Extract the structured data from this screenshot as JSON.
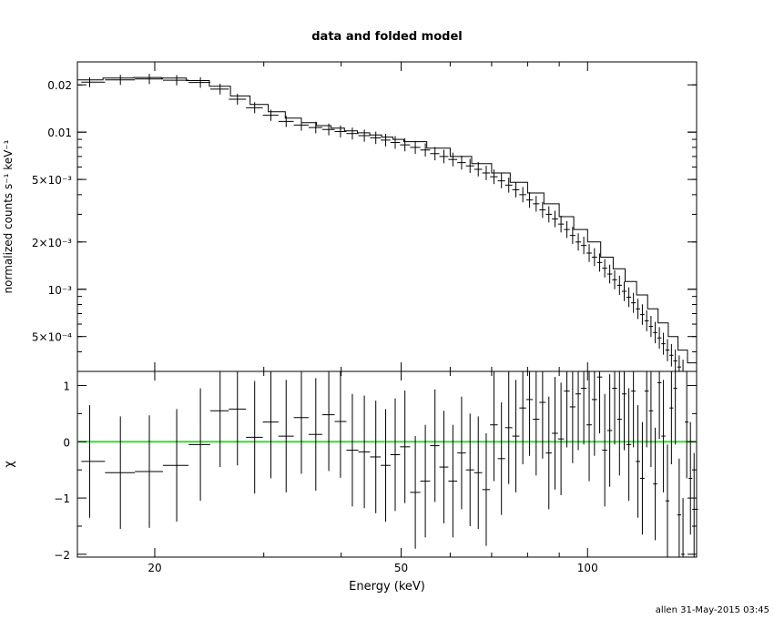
{
  "title": "data and folded model",
  "footer": "allen 31-May-2015 03:45",
  "colors": {
    "axes": "#000000",
    "zero_line": "#33dd33",
    "background": "#ffffff"
  },
  "chart_data": [
    {
      "type": "line",
      "panel": "top",
      "ylabel": "normalized counts s⁻¹ keV⁻¹",
      "xscale": "log",
      "yscale": "log",
      "xlim": [
        15,
        150
      ],
      "ylim": [
        0.0003,
        0.028
      ],
      "ytick_labels": [
        {
          "v": 0.02,
          "label": "0.02"
        },
        {
          "v": 0.01,
          "label": "0.01"
        },
        {
          "v": 0.005,
          "label": "5×10⁻³"
        },
        {
          "v": 0.002,
          "label": "2×10⁻³"
        },
        {
          "v": 0.001,
          "label": "10⁻³"
        },
        {
          "v": 0.0005,
          "label": "5×10⁻⁴"
        }
      ],
      "series": [
        {
          "kind": "data",
          "x": [
            15.7,
            17.6,
            19.6,
            21.7,
            23.7,
            25.5,
            27.2,
            29.0,
            30.8,
            32.6,
            34.5,
            36.4,
            38.2,
            39.9,
            41.7,
            43.6,
            45.5,
            47.2,
            48.9,
            50.7,
            52.7,
            54.7,
            56.7,
            58.6,
            60.6,
            62.6,
            64.6,
            66.6,
            68.6,
            70.6,
            72.6,
            74.6,
            76.6,
            78.6,
            80.6,
            82.6,
            84.6,
            86.6,
            88.6,
            90.6,
            92.6,
            94.6,
            96.6,
            98.6,
            100.6,
            102.6,
            104.6,
            106.6,
            108.6,
            110.6,
            112.6,
            114.6,
            116.6,
            118.6,
            120.6,
            122.6,
            124.6,
            126.6,
            128.6,
            130.6,
            132.6,
            134.6,
            136.6,
            138.6,
            140.6,
            142.6,
            144.6,
            146.6,
            148.6
          ],
          "y": [
            0.0208,
            0.0215,
            0.0218,
            0.0214,
            0.0207,
            0.0188,
            0.0162,
            0.0143,
            0.0128,
            0.0117,
            0.0111,
            0.0107,
            0.0104,
            0.0101,
            0.0098,
            0.0095,
            0.0092,
            0.0089,
            0.0086,
            0.0083,
            0.008,
            0.0077,
            0.0073,
            0.007,
            0.0067,
            0.0064,
            0.0061,
            0.0058,
            0.0055,
            0.0052,
            0.0049,
            0.0046,
            0.0043,
            0.004,
            0.0037,
            0.0035,
            0.0032,
            0.003,
            0.0028,
            0.0026,
            0.0024,
            0.0022,
            0.002,
            0.0019,
            0.0017,
            0.0016,
            0.00148,
            0.00136,
            0.00125,
            0.00115,
            0.00106,
            0.00097,
            0.00089,
            0.00082,
            0.00075,
            0.00069,
            0.00063,
            0.00058,
            0.00053,
            0.00049,
            0.00045,
            0.00041,
            0.00038,
            0.00035,
            0.00032,
            0.0003,
            0.00028,
            0.00026,
            0.00024
          ]
        },
        {
          "kind": "model",
          "x": [
            15.0,
            16.5,
            18.5,
            20.5,
            22.5,
            24.5,
            26.5,
            28.5,
            30.5,
            32.5,
            34.5,
            36.5,
            38.5,
            40.5,
            42.5,
            44.5,
            46.5,
            48.5,
            50.5,
            55.0,
            60.0,
            65.0,
            70.0,
            75.0,
            80.0,
            85.0,
            90.0,
            95.0,
            100.0,
            105.0,
            110.0,
            115.0,
            120.0,
            125.0,
            130.0,
            135.0,
            140.0,
            145.0,
            150.0
          ],
          "y": [
            0.0215,
            0.0221,
            0.0223,
            0.0221,
            0.0213,
            0.0196,
            0.017,
            0.015,
            0.0135,
            0.0123,
            0.0115,
            0.011,
            0.0106,
            0.0102,
            0.0099,
            0.0096,
            0.0093,
            0.009,
            0.0087,
            0.0079,
            0.007,
            0.0063,
            0.0055,
            0.0048,
            0.0041,
            0.0035,
            0.0029,
            0.0024,
            0.002,
            0.0016,
            0.00135,
            0.00112,
            0.00092,
            0.00075,
            0.00061,
            0.0005,
            0.00041,
            0.00034,
            0.00028
          ]
        }
      ]
    },
    {
      "type": "scatter",
      "panel": "bottom",
      "xlabel": "Energy (keV)",
      "ylabel": "χ",
      "xscale": "log",
      "xlim": [
        15,
        150
      ],
      "ylim": [
        -2.05,
        1.25
      ],
      "xtick_labels": [
        {
          "v": 20,
          "label": "20"
        },
        {
          "v": 50,
          "label": "50"
        },
        {
          "v": 100,
          "label": "100"
        }
      ],
      "ytick_labels": [
        {
          "v": 1,
          "label": "1"
        },
        {
          "v": 0,
          "label": "0"
        },
        {
          "v": -1,
          "label": "−1"
        },
        {
          "v": -2,
          "label": "−2"
        }
      ],
      "residuals": {
        "x": [
          15.7,
          17.6,
          19.6,
          21.7,
          23.7,
          25.5,
          27.2,
          29.0,
          30.8,
          32.6,
          34.5,
          36.4,
          38.2,
          39.9,
          41.7,
          43.6,
          45.5,
          47.2,
          48.9,
          50.7,
          52.7,
          54.7,
          56.7,
          58.6,
          60.6,
          62.6,
          64.6,
          66.6,
          68.6,
          70.6,
          72.6,
          74.6,
          76.6,
          78.6,
          80.6,
          82.6,
          84.6,
          86.6,
          88.6,
          90.6,
          92.6,
          94.6,
          96.6,
          98.6,
          100.6,
          102.6,
          104.6,
          106.6,
          108.6,
          110.6,
          112.6,
          114.6,
          116.6,
          118.6,
          120.6,
          122.6,
          124.6,
          126.6,
          128.6,
          130.6,
          132.6,
          134.6,
          136.6,
          138.6,
          140.6,
          142.6,
          144.6,
          146.6,
          148.6
        ],
        "y": [
          -0.35,
          -0.55,
          -0.53,
          -0.42,
          -0.05,
          0.55,
          0.58,
          0.08,
          0.35,
          0.1,
          0.43,
          0.13,
          0.48,
          0.36,
          -0.15,
          -0.18,
          -0.27,
          -0.42,
          -0.23,
          -0.09,
          -0.9,
          -0.7,
          -0.07,
          -0.45,
          -0.7,
          -0.2,
          -0.5,
          -0.55,
          -0.85,
          0.3,
          -0.3,
          0.25,
          0.1,
          0.6,
          0.75,
          0.4,
          0.7,
          -0.2,
          0.15,
          0.05,
          0.9,
          0.62,
          0.85,
          0.95,
          0.3,
          0.75,
          1.15,
          -0.15,
          0.2,
          0.95,
          0.4,
          0.85,
          -0.05,
          0.9,
          -0.35,
          -0.65,
          0.9,
          0.55,
          -0.75,
          1.05,
          0.1,
          -1.05,
          0.6,
          0.95,
          -1.3,
          -2.0,
          0.35,
          -0.65,
          -1.2
        ],
        "err": 1.0
      },
      "zero_line": 0
    }
  ]
}
